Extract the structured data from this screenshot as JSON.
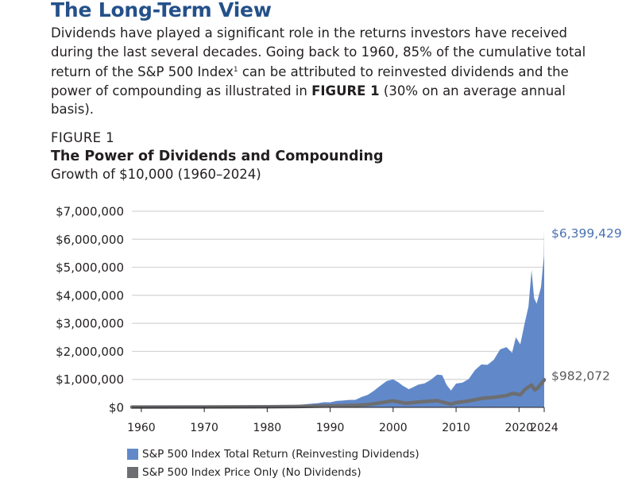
{
  "header": {
    "title": "The Long-Term View",
    "intro_part1": "Dividends have played a significant role in the returns investors have received during the last several decades. Going back to 1960, 85% of the cumulative total return of the S&P 500 Index",
    "intro_sup": "1",
    "intro_part2": " can be attributed to reinvested dividends and the power of compounding as illustrated in ",
    "intro_bold": "FIGURE 1",
    "intro_part3": " (30% on an average annual basis)."
  },
  "figure": {
    "label": "FIGURE 1",
    "title": "The Power of Dividends and Compounding",
    "subtitle": "Growth of $10,000 (1960–2024)"
  },
  "colors": {
    "total_return": "#6189c9",
    "price_only": "#6d6e71",
    "end_label_total": "#4a72b2",
    "end_label_price": "#58595b",
    "grid": "#d4d4d4"
  },
  "chart_data": {
    "type": "area",
    "title": "The Power of Dividends and Compounding",
    "subtitle": "Growth of $10,000 (1960–2024)",
    "xlim": [
      1958.5,
      2024
    ],
    "ylim": [
      0,
      7000000
    ],
    "y_ticks": [
      {
        "value": 0,
        "label": "$0"
      },
      {
        "value": 1000000,
        "label": "$1,000,000"
      },
      {
        "value": 2000000,
        "label": "$2,000,000"
      },
      {
        "value": 3000000,
        "label": "$3,000,000"
      },
      {
        "value": 4000000,
        "label": "$4,000,000"
      },
      {
        "value": 5000000,
        "label": "$5,000,000"
      },
      {
        "value": 6000000,
        "label": "$6,000,000"
      },
      {
        "value": 7000000,
        "label": "$7,000,000"
      }
    ],
    "x_ticks": [
      {
        "value": 1960,
        "label": "1960"
      },
      {
        "value": 1970,
        "label": "1970"
      },
      {
        "value": 1980,
        "label": "1980"
      },
      {
        "value": 1990,
        "label": "1990"
      },
      {
        "value": 2000,
        "label": "2000"
      },
      {
        "value": 2010,
        "label": "2010"
      },
      {
        "value": 2020,
        "label": "2020"
      },
      {
        "value": 2024,
        "label": "2024"
      }
    ],
    "grid": true,
    "legend_position": "bottom",
    "series": [
      {
        "name": "S&P 500 Index Total Return (Reinvesting Dividends)",
        "kind": "area",
        "end_label": "$6,399,429",
        "points": [
          [
            1958.5,
            10000
          ],
          [
            1960,
            10000
          ],
          [
            1962,
            12000
          ],
          [
            1964,
            15000
          ],
          [
            1966,
            17000
          ],
          [
            1968,
            21000
          ],
          [
            1970,
            22000
          ],
          [
            1972,
            30000
          ],
          [
            1973,
            28000
          ],
          [
            1974,
            22000
          ],
          [
            1976,
            32000
          ],
          [
            1978,
            35000
          ],
          [
            1980,
            50000
          ],
          [
            1982,
            62000
          ],
          [
            1984,
            70000
          ],
          [
            1985,
            90000
          ],
          [
            1986,
            110000
          ],
          [
            1987,
            130000
          ],
          [
            1988,
            150000
          ],
          [
            1989,
            185000
          ],
          [
            1990,
            180000
          ],
          [
            1991,
            230000
          ],
          [
            1992,
            245000
          ],
          [
            1993,
            265000
          ],
          [
            1994,
            270000
          ],
          [
            1995,
            370000
          ],
          [
            1996,
            450000
          ],
          [
            1997,
            600000
          ],
          [
            1998,
            780000
          ],
          [
            1999,
            940000
          ],
          [
            2000,
            1000000
          ],
          [
            2000.8,
            900000
          ],
          [
            2001.5,
            780000
          ],
          [
            2002.5,
            650000
          ],
          [
            2003,
            700000
          ],
          [
            2004,
            810000
          ],
          [
            2005,
            860000
          ],
          [
            2006,
            990000
          ],
          [
            2007,
            1170000
          ],
          [
            2007.8,
            1150000
          ],
          [
            2008.5,
            800000
          ],
          [
            2009.2,
            600000
          ],
          [
            2010,
            850000
          ],
          [
            2011,
            880000
          ],
          [
            2012,
            1010000
          ],
          [
            2013,
            1330000
          ],
          [
            2014,
            1530000
          ],
          [
            2015,
            1520000
          ],
          [
            2016,
            1700000
          ],
          [
            2017,
            2070000
          ],
          [
            2018,
            2150000
          ],
          [
            2018.9,
            1950000
          ],
          [
            2019.5,
            2500000
          ],
          [
            2020.2,
            2250000
          ],
          [
            2020.9,
            3000000
          ],
          [
            2021.5,
            3600000
          ],
          [
            2021.99,
            4900000
          ],
          [
            2022.4,
            3900000
          ],
          [
            2022.8,
            3700000
          ],
          [
            2023.5,
            4300000
          ],
          [
            2023.95,
            5400000
          ],
          [
            2024,
            6400000
          ]
        ]
      },
      {
        "name": "S&P 500 Index Price Only (No Dividends)",
        "kind": "line",
        "end_label": "$982,072",
        "points": [
          [
            1958.5,
            10000
          ],
          [
            1960,
            10000
          ],
          [
            1970,
            14000
          ],
          [
            1980,
            19000
          ],
          [
            1985,
            30000
          ],
          [
            1990,
            55000
          ],
          [
            1994,
            75000
          ],
          [
            1996,
            100000
          ],
          [
            1998,
            165000
          ],
          [
            2000,
            235000
          ],
          [
            2002,
            145000
          ],
          [
            2004,
            190000
          ],
          [
            2007,
            240000
          ],
          [
            2008.5,
            150000
          ],
          [
            2009.2,
            120000
          ],
          [
            2010,
            170000
          ],
          [
            2012,
            230000
          ],
          [
            2014,
            320000
          ],
          [
            2016,
            360000
          ],
          [
            2018,
            420000
          ],
          [
            2019,
            500000
          ],
          [
            2020.2,
            450000
          ],
          [
            2021,
            650000
          ],
          [
            2021.99,
            800000
          ],
          [
            2022.5,
            620000
          ],
          [
            2023,
            700000
          ],
          [
            2024,
            982000
          ]
        ]
      }
    ]
  }
}
